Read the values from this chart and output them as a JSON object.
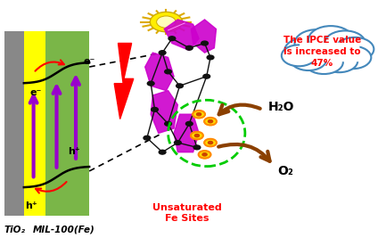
{
  "bg_color": "#ffffff",
  "fig_width": 4.33,
  "fig_height": 2.67,
  "dpi": 100,
  "label_tio2": "TiO₂",
  "label_mil": "MIL-100(Fe)",
  "cloud_text": "The IPCE value\nis increased to\n47%",
  "h2o_text": "H₂O",
  "o2_text": "O₂",
  "unsaturated_text": "Unsaturated\nFe Sites",
  "arrow_color_brown": "#8B4000",
  "purple_color": "#9900cc",
  "cloud_outline": "#4488bb",
  "cloud_fill": "#ddeeff",
  "dashed_circle_color": "#00cc00",
  "mol_color": "#cc00cc",
  "sun_color": "#ffee00",
  "lightning_color": "#ff0000",
  "gray_color": "#888888",
  "yellow_color": "#ffff00",
  "green_color": "#7ab648"
}
